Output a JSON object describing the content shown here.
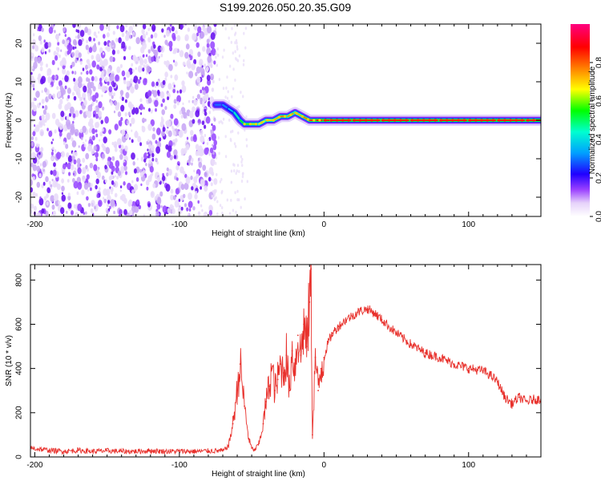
{
  "title": "S199.2026.050.20.35.G09",
  "chart_data": [
    {
      "type": "heatmap",
      "xlabel": "Height of straight line (km)",
      "ylabel": "Frequency (Hz)",
      "xlim": [
        -203,
        150
      ],
      "ylim": [
        -25,
        25
      ],
      "xticks": [
        -200,
        -100,
        0,
        100
      ],
      "xtick_labels": [
        "-200",
        "-100",
        "0",
        "100"
      ],
      "yticks": [
        -20,
        -10,
        0,
        10,
        20
      ],
      "ytick_labels": [
        "-20",
        "-10",
        "0",
        "10",
        "20"
      ],
      "noise_region_x": [
        -203,
        -75
      ],
      "signal_track": {
        "x": [
          -75,
          -70,
          -66,
          -62,
          -58,
          -55,
          -50,
          -45,
          -40,
          -35,
          -30,
          -25,
          -20,
          -15,
          -10,
          -5,
          0,
          5,
          10,
          20,
          30,
          40,
          50,
          60,
          70,
          80,
          90,
          100,
          110,
          120,
          130,
          140,
          150
        ],
        "freq": [
          4,
          4,
          3,
          2,
          0,
          -1,
          -1,
          -1,
          0,
          0,
          1,
          1,
          2,
          1,
          0,
          0,
          0,
          0,
          0,
          0,
          0,
          0,
          0,
          0,
          0,
          0,
          0,
          0,
          0,
          0,
          0,
          0,
          0
        ],
        "amplitude": [
          0.3,
          0.3,
          0.35,
          0.4,
          0.5,
          0.55,
          0.6,
          0.65,
          0.7,
          0.7,
          0.75,
          0.8,
          0.7,
          0.75,
          0.8,
          0.85,
          0.85,
          0.85,
          0.85,
          0.85,
          0.85,
          0.85,
          0.85,
          0.85,
          0.85,
          0.85,
          0.85,
          0.85,
          0.85,
          0.85,
          0.85,
          0.85,
          0.85
        ]
      },
      "colorbar": {
        "label": "Normalized spectral amplitude",
        "range": [
          0,
          1
        ],
        "ticks": [
          0.0,
          0.2,
          0.4,
          0.6,
          0.8
        ],
        "tick_labels": [
          "0.0",
          "0.2",
          "0.4",
          "0.6",
          "0.8"
        ],
        "colormap": [
          "#ffffff",
          "#d8bff5",
          "#7b00ff",
          "#2000ff",
          "#00a0ff",
          "#00ffd0",
          "#00ff00",
          "#ffff00",
          "#ff8000",
          "#ff0000",
          "#ff0080"
        ]
      }
    },
    {
      "type": "line",
      "xlabel": "Height of straight line (km)",
      "ylabel": "SNR (10 * v/v)",
      "xlim": [
        -203,
        150
      ],
      "ylim": [
        0,
        870
      ],
      "xticks": [
        -200,
        -100,
        0,
        100
      ],
      "xtick_labels": [
        "-200",
        "-100",
        "0",
        "100"
      ],
      "yticks": [
        0,
        200,
        400,
        600,
        800
      ],
      "ytick_labels": [
        "0",
        "200",
        "400",
        "600",
        "800"
      ],
      "series": [
        {
          "name": "SNR",
          "color": "#e8312c",
          "x": [
            -203,
            -190,
            -180,
            -170,
            -160,
            -150,
            -140,
            -130,
            -120,
            -110,
            -100,
            -90,
            -80,
            -70,
            -66,
            -63,
            -60,
            -58,
            -55,
            -52,
            -50,
            -48,
            -45,
            -42,
            -40,
            -38,
            -36,
            -34,
            -32,
            -30,
            -28,
            -26,
            -24,
            -22,
            -20,
            -18,
            -16,
            -14,
            -12,
            -10,
            -9,
            -8,
            -6,
            -4,
            -2,
            0,
            3,
            6,
            10,
            15,
            20,
            25,
            30,
            35,
            40,
            50,
            60,
            70,
            80,
            90,
            100,
            110,
            115,
            120,
            125,
            130,
            135,
            140,
            145,
            150
          ],
          "values": [
            40,
            30,
            25,
            30,
            25,
            28,
            25,
            25,
            28,
            25,
            26,
            25,
            27,
            28,
            50,
            150,
            300,
            420,
            230,
            80,
            40,
            30,
            60,
            150,
            250,
            320,
            400,
            300,
            350,
            420,
            380,
            460,
            300,
            480,
            400,
            550,
            460,
            600,
            500,
            700,
            850,
            100,
            450,
            300,
            400,
            450,
            520,
            560,
            590,
            620,
            640,
            660,
            670,
            650,
            620,
            560,
            510,
            470,
            450,
            420,
            400,
            390,
            370,
            340,
            270,
            240,
            270,
            250,
            260,
            260
          ]
        }
      ]
    }
  ]
}
